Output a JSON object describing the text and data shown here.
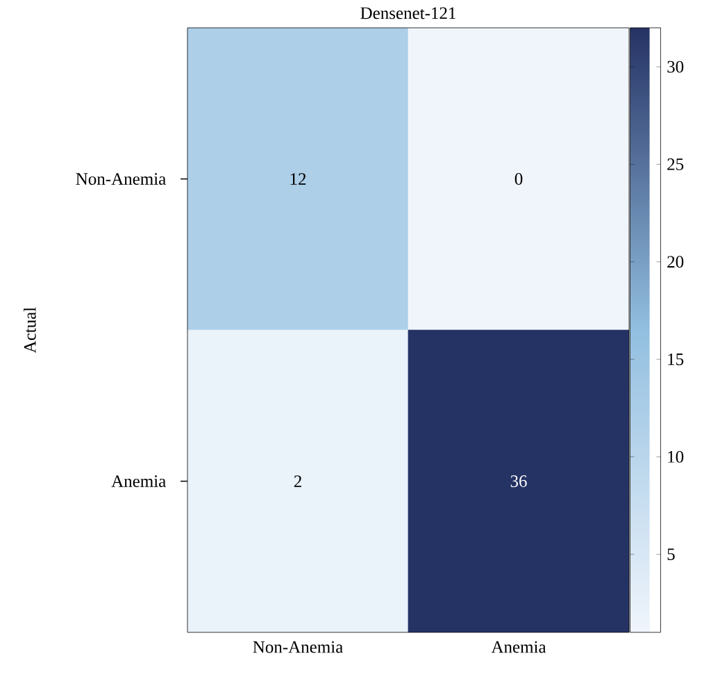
{
  "chart_data": {
    "type": "heatmap",
    "title": "Densenet-121",
    "ylabel": "Actual",
    "categories": [
      "Non-Anemia",
      "Anemia"
    ],
    "y_categories": [
      "Non-Anemia",
      "Anemia"
    ],
    "cells": [
      [
        12,
        0
      ],
      [
        2,
        36
      ]
    ],
    "data_labels": true,
    "clim": [
      1,
      32
    ],
    "cticks": [
      5,
      10,
      15,
      20,
      25,
      30
    ]
  }
}
